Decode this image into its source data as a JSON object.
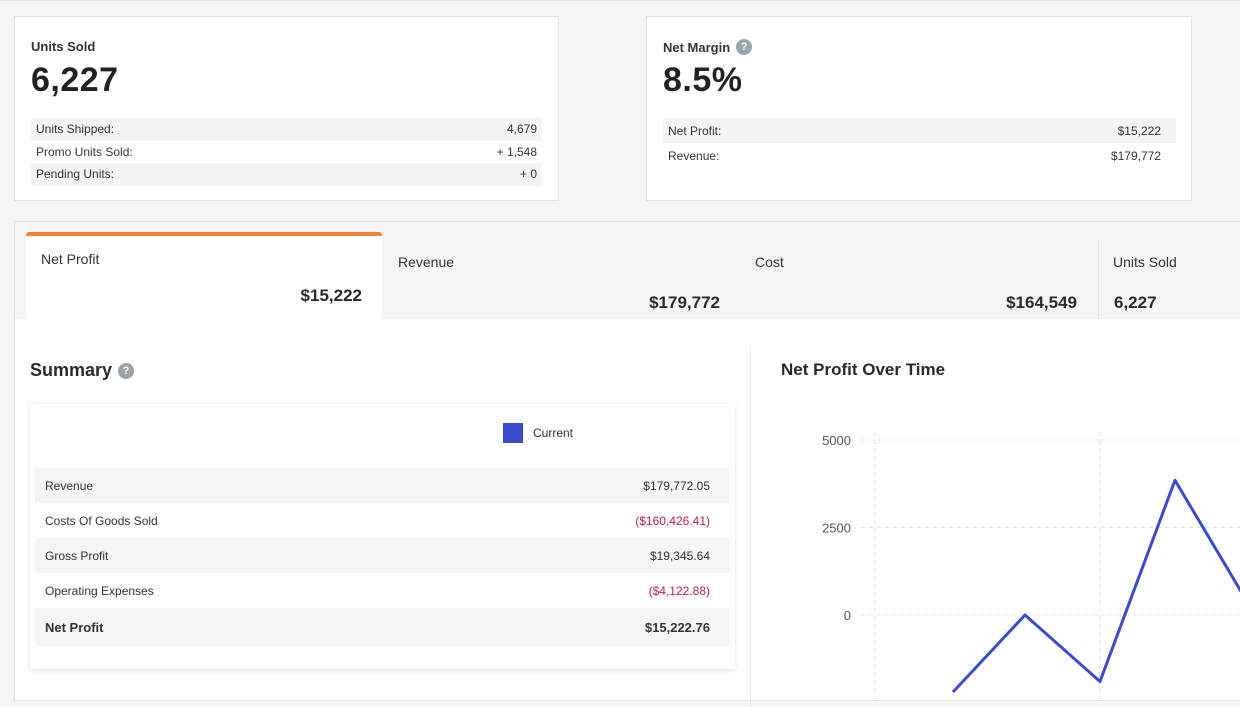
{
  "units_card": {
    "title": "Units Sold",
    "value": "6,227",
    "rows": [
      {
        "label": "Units Shipped:",
        "value": "4,679"
      },
      {
        "label": "Promo Units Sold:",
        "value": "+ 1,548"
      },
      {
        "label": "Pending Units:",
        "value": "+ 0"
      }
    ]
  },
  "margin_card": {
    "title": "Net Margin",
    "help_icon": "?",
    "value": "8.5%",
    "rows": [
      {
        "label": "Net Profit:",
        "value": "$15,222"
      },
      {
        "label": "Revenue:",
        "value": "$179,772"
      }
    ]
  },
  "tabs": [
    {
      "label": "Net Profit",
      "value": "$15,222",
      "active": true
    },
    {
      "label": "Revenue",
      "value": "$179,772"
    },
    {
      "label": "Cost",
      "value": "$164,549"
    },
    {
      "label": "Units Sold",
      "value": "6,227"
    }
  ],
  "summary": {
    "title": "Summary",
    "help_icon": "?",
    "legend_label": "Current",
    "legend_color": "#3b4bcb",
    "rows": [
      {
        "label": "Revenue",
        "value": "$179,772.05"
      },
      {
        "label": "Costs Of Goods Sold",
        "value": "($160,426.41)"
      },
      {
        "label": "Gross Profit",
        "value": "$19,345.64"
      },
      {
        "label": "Operating Expenses",
        "value": "($4,122.88)"
      },
      {
        "label": "Net Profit",
        "value": "$15,222.76"
      }
    ]
  },
  "chart_data": {
    "type": "line",
    "title": "Net Profit Over Time",
    "y_ticks": [
      "5000",
      "2500",
      "0"
    ],
    "ylim": [
      -2000,
      5300
    ],
    "line_color": "#3b4bcb",
    "grid": true,
    "series": [
      {
        "values": [
          -2200,
          0,
          -1900,
          3850,
          0
        ]
      }
    ]
  }
}
